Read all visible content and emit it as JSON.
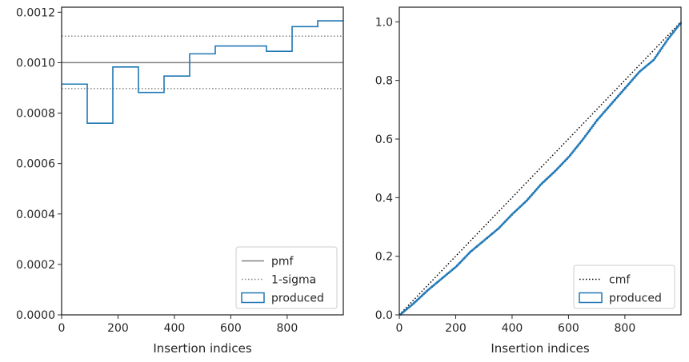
{
  "chart_data": [
    {
      "type": "histogram-step",
      "xlabel": "Insertion indices",
      "ylabel": "",
      "xlim": [
        0,
        999
      ],
      "ylim": [
        0,
        0.00122
      ],
      "xticks": [
        "0",
        "200",
        "400",
        "600",
        "800"
      ],
      "yticks": [
        "0.0000",
        "0.0002",
        "0.0004",
        "0.0006",
        "0.0008",
        "0.0010",
        "0.0012"
      ],
      "bin_edges": [
        0,
        90.8,
        181.6,
        272.5,
        363.3,
        454.1,
        544.9,
        635.7,
        726.5,
        817.4,
        908.2,
        999
      ],
      "bin_values": [
        0.000915,
        0.00076,
        0.000983,
        0.000882,
        0.000947,
        0.001035,
        0.001066,
        0.001066,
        0.001045,
        0.001143,
        0.001166
      ],
      "pmf": 0.001,
      "sigma_upper": 0.001105,
      "sigma_lower": 0.000897,
      "legend_position": "lower right",
      "legend": [
        {
          "label": "pmf",
          "style": "solid-line",
          "color": "#808080"
        },
        {
          "label": "1-sigma",
          "style": "dotted-line",
          "color": "#808080"
        },
        {
          "label": "produced",
          "style": "box",
          "color": "#1f77b4"
        }
      ]
    },
    {
      "type": "line",
      "xlabel": "Insertion indices",
      "ylabel": "",
      "xlim": [
        0,
        999
      ],
      "ylim": [
        0,
        1.05
      ],
      "xticks": [
        "0",
        "200",
        "400",
        "600",
        "800"
      ],
      "yticks": [
        "0.0",
        "0.2",
        "0.4",
        "0.6",
        "0.8",
        "1.0"
      ],
      "series": [
        {
          "name": "cmf",
          "style": "dotted",
          "color": "#000000",
          "x": [
            0,
            999
          ],
          "y": [
            0,
            1.0
          ]
        },
        {
          "name": "produced",
          "style": "step",
          "color": "#1f77b4",
          "x": [
            0,
            50,
            100,
            150,
            200,
            250,
            300,
            350,
            400,
            450,
            500,
            550,
            600,
            650,
            700,
            750,
            800,
            850,
            900,
            950,
            999
          ],
          "y": [
            0,
            0.04,
            0.085,
            0.125,
            0.165,
            0.215,
            0.255,
            0.295,
            0.345,
            0.39,
            0.445,
            0.49,
            0.54,
            0.6,
            0.665,
            0.72,
            0.775,
            0.83,
            0.87,
            0.94,
            1.0
          ]
        }
      ],
      "legend_position": "lower right",
      "legend": [
        {
          "label": "cmf",
          "style": "dotted-line",
          "color": "#000000"
        },
        {
          "label": "produced",
          "style": "box",
          "color": "#1f77b4"
        }
      ]
    }
  ]
}
